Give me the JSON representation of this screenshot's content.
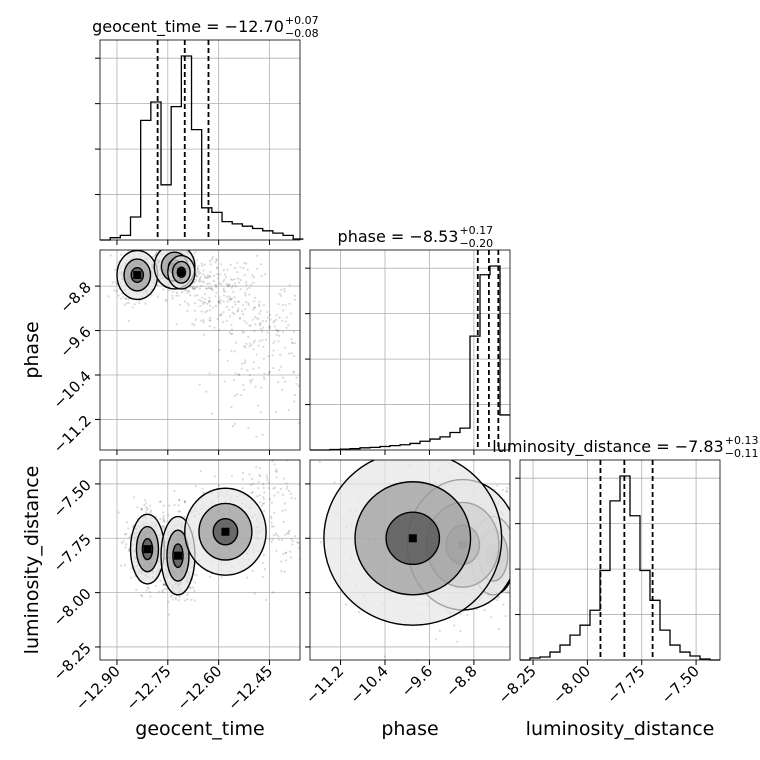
{
  "chart_data": {
    "type": "corner",
    "parameters": [
      "geocent_time",
      "phase",
      "luminosity_distance"
    ],
    "titles": {
      "geocent_time": {
        "name": "geocent_time",
        "median": "−12.70",
        "plus": "+0.07",
        "minus": "−0.08"
      },
      "phase": {
        "name": "phase",
        "median": "−8.53",
        "plus": "+0.17",
        "minus": "−0.20"
      },
      "luminosity_distance": {
        "name": "luminosity_distance",
        "median": "−7.83",
        "plus": "+0.13",
        "minus": "−0.11"
      }
    },
    "ranges": {
      "geocent_time": [
        -12.95,
        -12.36
      ],
      "phase": [
        -11.75,
        -8.15
      ],
      "luminosity_distance": [
        -8.31,
        -7.39
      ]
    },
    "ticks": {
      "geocent_time": [
        {
          "v": -12.9,
          "label": "−12.90"
        },
        {
          "v": -12.75,
          "label": "−12.75"
        },
        {
          "v": -12.6,
          "label": "−12.60"
        },
        {
          "v": -12.45,
          "label": "−12.45"
        }
      ],
      "phase": [
        {
          "v": -11.2,
          "label": "−11.2"
        },
        {
          "v": -10.4,
          "label": "−10.4"
        },
        {
          "v": -9.6,
          "label": "−9.6"
        },
        {
          "v": -8.8,
          "label": "−8.8"
        }
      ],
      "luminosity_distance": [
        {
          "v": -8.25,
          "label": "−8.25"
        },
        {
          "v": -8.0,
          "label": "−8.00"
        },
        {
          "v": -7.75,
          "label": "−7.75"
        },
        {
          "v": -7.5,
          "label": "−7.50"
        }
      ]
    },
    "quantiles": {
      "geocent_time": [
        -12.78,
        -12.7,
        -12.63
      ],
      "phase": [
        -8.73,
        -8.53,
        -8.36
      ],
      "luminosity_distance": [
        -7.94,
        -7.83,
        -7.7
      ]
    },
    "histograms": {
      "geocent_time": {
        "edges": [
          -12.95,
          -12.92,
          -12.89,
          -12.86,
          -12.83,
          -12.8,
          -12.77,
          -12.74,
          -12.71,
          -12.68,
          -12.65,
          -12.62,
          -12.59,
          -12.56,
          -12.53,
          -12.5,
          -12.47,
          -12.44,
          -12.41,
          -12.38,
          -12.35
        ],
        "counts": [
          0,
          0.5,
          1,
          5,
          26,
          30,
          12,
          29,
          40,
          24,
          7,
          6,
          4,
          3.5,
          3,
          2.5,
          2,
          1.5,
          1,
          0.2
        ]
      },
      "phase": {
        "edges": [
          -11.75,
          -11.57,
          -11.39,
          -11.21,
          -11.03,
          -10.85,
          -10.67,
          -10.49,
          -10.31,
          -10.13,
          -9.95,
          -9.77,
          -9.59,
          -9.41,
          -9.23,
          -9.05,
          -8.87,
          -8.69,
          -8.51,
          -8.33,
          -8.15
        ],
        "counts": [
          0,
          0,
          0.1,
          0.2,
          0.3,
          0.5,
          0.6,
          0.8,
          1,
          1.2,
          1.5,
          2,
          2.5,
          3,
          4,
          5,
          26,
          40,
          42,
          8
        ]
      },
      "luminosity_distance": {
        "edges": [
          -8.31,
          -8.264,
          -8.218,
          -8.172,
          -8.126,
          -8.08,
          -8.034,
          -7.988,
          -7.942,
          -7.896,
          -7.85,
          -7.804,
          -7.758,
          -7.712,
          -7.666,
          -7.62,
          -7.574,
          -7.528,
          -7.482,
          -7.436,
          -7.39
        ],
        "counts": [
          0,
          0.2,
          0.3,
          0.8,
          1.5,
          2.5,
          3.5,
          5,
          9,
          16,
          18.5,
          14.5,
          9,
          6,
          3,
          1.5,
          0.8,
          0.4,
          0.1,
          0
        ]
      }
    },
    "density_peaks": {
      "phase_vs_geocent_time": [
        {
          "x": -12.84,
          "y": -8.6,
          "sx": 0.03,
          "sy": 0.22,
          "w": 1.0
        },
        {
          "x": -12.73,
          "y": -8.45,
          "sx": 0.03,
          "sy": 0.2,
          "w": 1.1
        },
        {
          "x": -12.71,
          "y": -8.55,
          "sx": 0.02,
          "sy": 0.15,
          "w": 0.8
        },
        {
          "x": -12.62,
          "y": -8.85,
          "sx": 0.06,
          "sy": 0.3,
          "w": 0.6
        },
        {
          "x": -12.48,
          "y": -9.8,
          "sx": 0.07,
          "sy": 0.7,
          "w": 0.5
        }
      ],
      "luminosity_distance_vs_geocent_time": [
        {
          "x": -12.81,
          "y": -7.8,
          "sx": 0.025,
          "sy": 0.08,
          "w": 1.0
        },
        {
          "x": -12.72,
          "y": -7.83,
          "sx": 0.025,
          "sy": 0.09,
          "w": 1.1
        },
        {
          "x": -12.58,
          "y": -7.72,
          "sx": 0.06,
          "sy": 0.1,
          "w": 0.5
        },
        {
          "x": -12.45,
          "y": -7.62,
          "sx": 0.06,
          "sy": 0.15,
          "w": 0.3
        }
      ],
      "luminosity_distance_vs_phase": [
        {
          "x": -8.45,
          "y": -7.83,
          "sx": 0.2,
          "sy": 0.09,
          "w": 1.2
        },
        {
          "x": -9.0,
          "y": -7.78,
          "sx": 0.5,
          "sy": 0.15,
          "w": 0.4
        },
        {
          "x": -9.9,
          "y": -7.75,
          "sx": 0.8,
          "sy": 0.2,
          "w": 0.2
        }
      ]
    }
  }
}
